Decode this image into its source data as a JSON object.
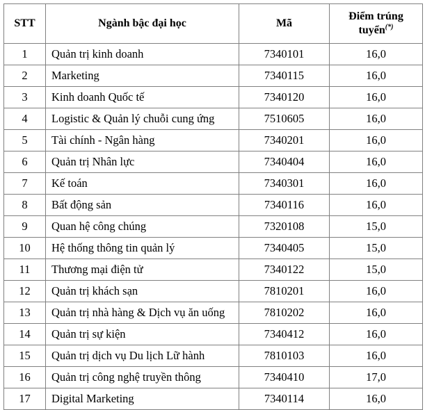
{
  "colors": {
    "border": "#808080",
    "text": "#000000",
    "background": "#ffffff"
  },
  "table": {
    "columns": [
      {
        "key": "stt",
        "label": "STT"
      },
      {
        "key": "nganh",
        "label": "Ngành bậc đại học"
      },
      {
        "key": "ma",
        "label": "Mã"
      },
      {
        "key": "diem",
        "label": "Điểm trúng tuyển",
        "superscript": "(*)"
      }
    ],
    "rows": [
      {
        "stt": "1",
        "nganh": "Quản trị kinh doanh",
        "ma": "7340101",
        "diem": "16,0"
      },
      {
        "stt": "2",
        "nganh": "Marketing",
        "ma": "7340115",
        "diem": "16,0"
      },
      {
        "stt": "3",
        "nganh": "Kinh doanh Quốc tế",
        "ma": "7340120",
        "diem": "16,0"
      },
      {
        "stt": "4",
        "nganh": "Logistic & Quản lý chuỗi cung ứng",
        "ma": "7510605",
        "diem": "16,0"
      },
      {
        "stt": "5",
        "nganh": "Tài chính - Ngân hàng",
        "ma": "7340201",
        "diem": "16,0"
      },
      {
        "stt": "6",
        "nganh": "Quản trị Nhân lực",
        "ma": "7340404",
        "diem": "16,0"
      },
      {
        "stt": "7",
        "nganh": "Kế toán",
        "ma": "7340301",
        "diem": "16,0"
      },
      {
        "stt": "8",
        "nganh": "Bất động sản",
        "ma": "7340116",
        "diem": "16,0"
      },
      {
        "stt": "9",
        "nganh": "Quan hệ công chúng",
        "ma": "7320108",
        "diem": "15,0"
      },
      {
        "stt": "10",
        "nganh": "Hệ thống thông tin quản lý",
        "ma": "7340405",
        "diem": "15,0"
      },
      {
        "stt": "11",
        "nganh": "Thương mại điện tử",
        "ma": "7340122",
        "diem": "15,0"
      },
      {
        "stt": "12",
        "nganh": "Quản trị khách sạn",
        "ma": "7810201",
        "diem": "16,0"
      },
      {
        "stt": "13",
        "nganh": "Quản trị nhà hàng & Dịch vụ ăn uống",
        "ma": "7810202",
        "diem": "16,0"
      },
      {
        "stt": "14",
        "nganh": "Quản trị sự kiện",
        "ma": "7340412",
        "diem": "16,0"
      },
      {
        "stt": "15",
        "nganh": "Quản trị dịch vụ Du lịch Lữ hành",
        "ma": "7810103",
        "diem": "16,0"
      },
      {
        "stt": "16",
        "nganh": "Quản trị công nghệ truyền thông",
        "ma": "7340410",
        "diem": "17,0"
      },
      {
        "stt": "17",
        "nganh": "Digital Marketing",
        "ma": "7340114",
        "diem": "16,0"
      }
    ]
  }
}
